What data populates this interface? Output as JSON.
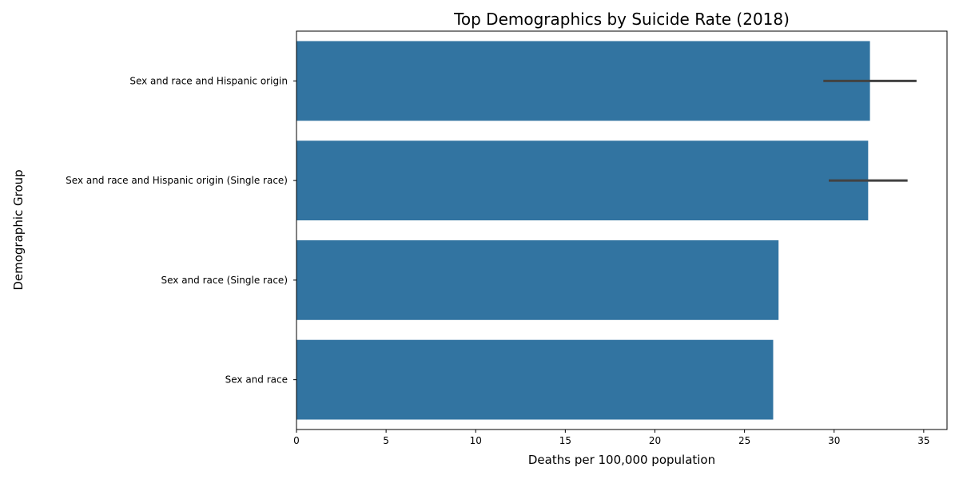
{
  "chart_data": {
    "type": "bar",
    "orientation": "horizontal",
    "title": "Top Demographics by Suicide Rate (2018)",
    "xlabel": "Deaths per 100,000 population",
    "ylabel": "Demographic Group",
    "xlim": [
      0,
      36.3
    ],
    "x_ticks": [
      0,
      5,
      10,
      15,
      20,
      25,
      30,
      35
    ],
    "grid": false,
    "bar_color": "#3274a1",
    "errorbar_color": "#424242",
    "categories": [
      "Sex and race and Hispanic origin",
      "Sex and race and Hispanic origin (Single race)",
      "Sex and race (Single race)",
      "Sex and race"
    ],
    "values": [
      32.0,
      31.9,
      26.9,
      26.6
    ],
    "error_ranges": [
      [
        29.4,
        34.6
      ],
      [
        29.7,
        34.1
      ],
      null,
      null
    ]
  }
}
